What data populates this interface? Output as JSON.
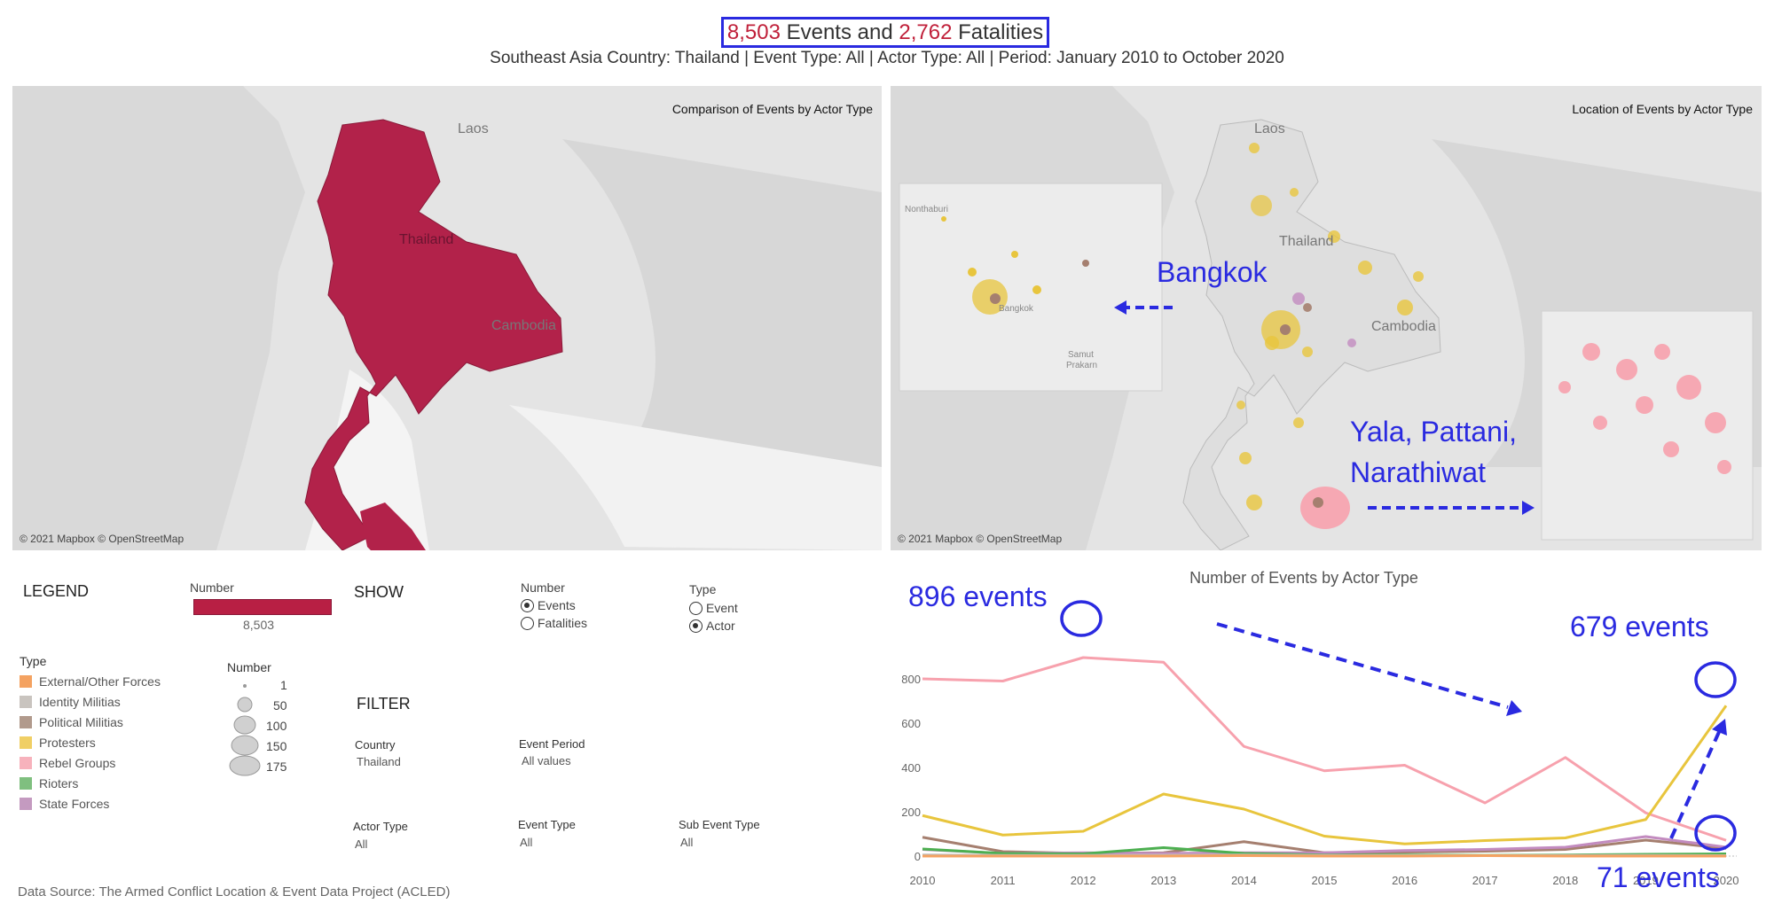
{
  "header": {
    "events_count": "8,503",
    "events_word": " Events and ",
    "fatalities_count": "2,762",
    "fatalities_word": " Fatalities",
    "subtitle": "Southeast Asia Country: Thailand | Event Type: All | Actor Type: All | Period: January 2010 to October 2020"
  },
  "left_map": {
    "title": "Comparison of Events by Actor Type",
    "attribution": "© 2021 Mapbox © OpenStreetMap",
    "labels": {
      "laos": "Laos",
      "thailand": "Thailand",
      "cambodia": "Cambodia"
    }
  },
  "right_map": {
    "title": "Location of Events by Actor Type",
    "attribution": "© 2021 Mapbox © OpenStreetMap",
    "labels": {
      "laos": "Laos",
      "thailand": "Thailand",
      "cambodia": "Cambodia"
    },
    "inset_labels": {
      "nonthaburi": "Nonthaburi",
      "bangkok": "Bangkok",
      "samut": "Samut",
      "prakarn": "Prakarn"
    },
    "annotations": {
      "bangkok": "Bangkok",
      "south_line1": "Yala, Pattani,",
      "south_line2": "Narathiwat"
    }
  },
  "legend": {
    "heading": "LEGEND",
    "number_label": "Number",
    "number_value": "8,503",
    "type_heading": "Type",
    "types": [
      {
        "label": "External/Other Forces",
        "color": "#f4a261"
      },
      {
        "label": "Identity Militias",
        "color": "#c9c4bf"
      },
      {
        "label": "Political Militias",
        "color": "#b19a8c"
      },
      {
        "label": "Protesters",
        "color": "#f0cf65"
      },
      {
        "label": "Rebel Groups",
        "color": "#f7b2bc"
      },
      {
        "label": "Rioters",
        "color": "#7fbf7f"
      },
      {
        "label": "State Forces",
        "color": "#c49ac0"
      }
    ],
    "size_heading": "Number",
    "sizes": [
      "1",
      "50",
      "100",
      "150",
      "175"
    ]
  },
  "show": {
    "heading": "SHOW",
    "number_heading": "Number",
    "number_options": [
      {
        "label": "Events",
        "on": true
      },
      {
        "label": "Fatalities",
        "on": false
      }
    ],
    "type_heading": "Type",
    "type_options": [
      {
        "label": "Event",
        "on": false
      },
      {
        "label": "Actor",
        "on": true
      }
    ]
  },
  "filter": {
    "heading": "FILTER",
    "country_label": "Country",
    "country_value": "Thailand",
    "period_label": "Event Period",
    "period_value": "All values",
    "actor_label": "Actor Type",
    "actor_value": "All",
    "event_type_label": "Event Type",
    "event_type_value": "All",
    "sub_event_label": "Sub Event Type",
    "sub_event_value": "All"
  },
  "source": "Data Source: The Armed Conflict Location & Event Data Project (ACLED)",
  "annotations": {
    "peak": "896 events",
    "protest": "679 events",
    "rebel_end": "71 events"
  },
  "chart_data": {
    "type": "line",
    "title": "Number of Events by Actor Type",
    "xlabel": "",
    "ylabel": "",
    "x": [
      "2010",
      "2011",
      "2012",
      "2013",
      "2014",
      "2015",
      "2016",
      "2017",
      "2018",
      "2019",
      "2020"
    ],
    "ylim": [
      0,
      900
    ],
    "yticks": [
      "0",
      "200",
      "400",
      "600",
      "800"
    ],
    "series": [
      {
        "name": "Rebel Groups",
        "color": "#f7a1ad",
        "values": [
          800,
          790,
          896,
          875,
          495,
          385,
          410,
          240,
          445,
          195,
          71
        ]
      },
      {
        "name": "Protesters",
        "color": "#e8c53d",
        "values": [
          183,
          95,
          112,
          280,
          212,
          90,
          55,
          70,
          82,
          165,
          679
        ]
      },
      {
        "name": "Political Militias",
        "color": "#a57f6f",
        "values": [
          85,
          20,
          12,
          15,
          65,
          15,
          18,
          22,
          30,
          72,
          35
        ]
      },
      {
        "name": "State Forces",
        "color": "#c28bbf",
        "values": [
          30,
          12,
          15,
          12,
          15,
          15,
          25,
          30,
          40,
          88,
          40
        ]
      },
      {
        "name": "Rioters",
        "color": "#4caf50",
        "values": [
          32,
          12,
          10,
          38,
          12,
          5,
          5,
          3,
          5,
          8,
          10
        ]
      },
      {
        "name": "Identity Militias",
        "color": "#bdbdbd",
        "values": [
          5,
          3,
          3,
          4,
          5,
          3,
          2,
          2,
          3,
          3,
          2
        ]
      },
      {
        "name": "External/Other Forces",
        "color": "#f4a261",
        "values": [
          0,
          0,
          0,
          0,
          2,
          0,
          0,
          2,
          0,
          0,
          0
        ]
      }
    ]
  }
}
